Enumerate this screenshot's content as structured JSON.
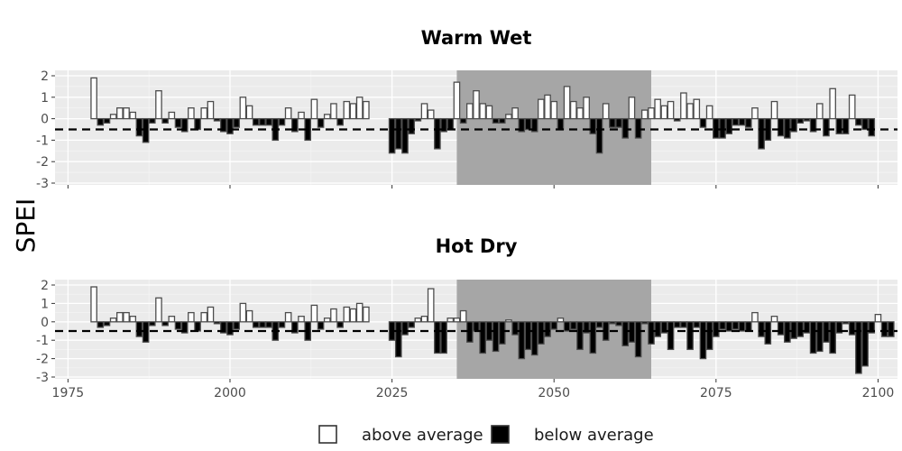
{
  "chart_data": {
    "type": "bar",
    "ylabel": "SPEI",
    "threshold": -0.5,
    "shaded_period": [
      2035,
      2065
    ],
    "xlim": [
      1973,
      2103
    ],
    "ylim": [
      -3,
      2
    ],
    "x_ticks": [
      1975,
      2000,
      2025,
      2050,
      2075,
      2100
    ],
    "y_ticks": [
      -3,
      -2,
      -1,
      0,
      1,
      2
    ],
    "legend": {
      "above": "above average",
      "below": "below average",
      "position": "bottom"
    },
    "colors": {
      "above": "#ffffff",
      "below": "#000000",
      "panel": "#ebebeb",
      "shade": "#a6a6a6"
    },
    "panels": [
      {
        "title": "Warm Wet",
        "segments": [
          {
            "start_year": 1979,
            "values": [
              1.9,
              -0.3,
              -0.2,
              0.2,
              0.5,
              0.5,
              0.3,
              -0.8,
              -1.1,
              -0.2,
              1.3,
              -0.2,
              0.3,
              -0.4,
              -0.6,
              0.5,
              -0.5,
              0.5,
              0.8,
              -0.1,
              -0.6,
              -0.7,
              -0.4,
              1.0,
              0.6,
              -0.3,
              -0.3,
              -0.3,
              -1.0,
              -0.3,
              0.5,
              -0.6,
              0.3,
              -1.0,
              0.9,
              -0.4,
              0.2,
              0.7,
              -0.3,
              0.8,
              0.7,
              1.0,
              0.8
            ]
          },
          {
            "start_year": 2025,
            "values": [
              -1.6,
              -1.4,
              -1.6,
              -0.7,
              -0.1,
              0.7,
              0.4,
              -1.4,
              -0.6,
              -0.5,
              1.7,
              -0.2,
              0.7,
              1.3,
              0.7,
              0.6,
              -0.2,
              -0.2,
              0.2,
              0.5,
              -0.6,
              -0.5,
              -0.6,
              0.9,
              1.1,
              0.8,
              -0.5,
              1.5,
              0.8,
              0.5,
              1.0,
              -0.7,
              -1.6,
              0.7,
              -0.4,
              -0.4,
              -0.9,
              1.0,
              -0.9,
              0.4,
              0.5,
              0.9,
              0.6,
              0.8,
              -0.1,
              1.2,
              0.7,
              0.9,
              -0.4,
              0.6,
              -0.9,
              -0.9,
              -0.7,
              -0.3,
              -0.3,
              -0.4,
              0.5,
              -1.4,
              -1.0,
              0.8,
              -0.8,
              -0.9,
              -0.6,
              -0.2,
              -0.1,
              -0.6,
              0.7,
              -0.8,
              1.4,
              -0.7,
              -0.7,
              1.1,
              -0.3,
              -0.5,
              -0.8
            ]
          }
        ]
      },
      {
        "title": "Hot Dry",
        "segments": [
          {
            "start_year": 1979,
            "values": [
              1.9,
              -0.3,
              -0.2,
              0.2,
              0.5,
              0.5,
              0.3,
              -0.8,
              -1.1,
              -0.2,
              1.3,
              -0.2,
              0.3,
              -0.4,
              -0.6,
              0.5,
              -0.5,
              0.5,
              0.8,
              -0.1,
              -0.6,
              -0.7,
              -0.4,
              1.0,
              0.6,
              -0.3,
              -0.3,
              -0.3,
              -1.0,
              -0.3,
              0.5,
              -0.6,
              0.3,
              -1.0,
              0.9,
              -0.4,
              0.2,
              0.7,
              -0.3,
              0.8,
              0.7,
              1.0,
              0.8
            ]
          },
          {
            "start_year": 2025,
            "values": [
              -1.0,
              -1.9,
              -0.7,
              -0.3,
              0.2,
              0.3,
              1.8,
              -1.7,
              -1.7,
              0.2,
              0.2,
              0.6,
              -1.1,
              -0.5,
              -1.7,
              -1.0,
              -1.6,
              -1.2,
              0.1,
              -0.7,
              -2.0,
              -1.5,
              -1.8,
              -1.2,
              -0.8,
              -0.4,
              0.2,
              -0.5,
              -0.4,
              -1.5,
              -0.6,
              -1.7,
              -0.3,
              -1.0,
              -0.1,
              -0.2,
              -1.3,
              -1.1,
              -1.9,
              -0.1,
              -1.2,
              -0.8,
              -0.6,
              -1.5,
              -0.3,
              -0.3,
              -1.5,
              -0.3,
              -2.0,
              -1.5,
              -0.8,
              -0.4,
              -0.5,
              -0.4,
              -0.5,
              -0.5,
              0.5,
              -0.8,
              -1.2,
              0.3,
              -0.7,
              -1.1,
              -0.9,
              -0.8,
              -0.6,
              -1.7,
              -1.6,
              -1.1,
              -1.7,
              -0.6,
              -0.1,
              -0.7,
              -2.8,
              -2.4,
              -0.6,
              0.4,
              -0.8,
              -0.8
            ]
          }
        ]
      }
    ]
  }
}
